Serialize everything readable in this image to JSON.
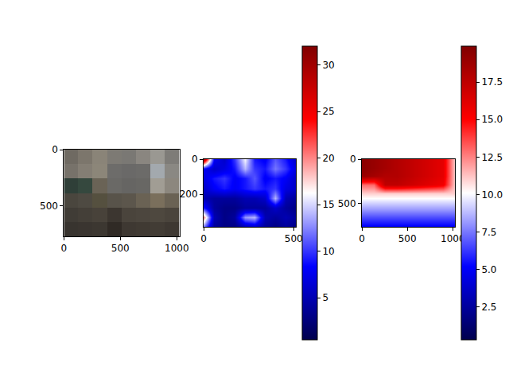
{
  "chart_data": [
    {
      "type": "image",
      "xlim": [
        0,
        1024
      ],
      "ylim": [
        768,
        0
      ],
      "xticks": [
        0,
        500,
        1000
      ],
      "yticks": [
        0,
        500
      ],
      "pixels": [
        [
          "#6f6a62",
          "#7c766c",
          "#8a8478",
          "#7d7a74",
          "#7a7874",
          "#8a8680",
          "#9a9892",
          "#7e7c78"
        ],
        [
          "#77726a",
          "#847e74",
          "#8c8679",
          "#6d6c6a",
          "#6a6968",
          "#6c6b69",
          "#a3a9ae",
          "#8a8883"
        ],
        [
          "#2f3f38",
          "#35483e",
          "#6a6356",
          "#6a6966",
          "#666563",
          "#686764",
          "#a19d94",
          "#8c877e"
        ],
        [
          "#4a463e",
          "#4e4a42",
          "#55503f",
          "#58534a",
          "#5c564c",
          "#6a6254",
          "#7a6f5c",
          "#6a6254"
        ],
        [
          "#403c36",
          "#443f38",
          "#48423a",
          "#3c3630",
          "#4a443c",
          "#4c463e",
          "#4e483f",
          "#4a443c"
        ],
        [
          "#38342f",
          "#3a3530",
          "#3c3731",
          "#302a25",
          "#3e3832",
          "#403a33",
          "#423c35",
          "#3e3832"
        ]
      ]
    },
    {
      "type": "heatmap",
      "xlim": [
        0,
        512
      ],
      "ylim": [
        384,
        0
      ],
      "xticks": [
        0,
        500
      ],
      "yticks": [
        0,
        200
      ],
      "x": [
        0,
        57,
        114,
        171,
        228,
        284,
        341,
        398,
        455,
        512
      ],
      "y": [
        0,
        55,
        110,
        165,
        220,
        275,
        330,
        384
      ],
      "cells": [
        [
          30,
          8,
          6,
          10,
          16,
          9,
          8,
          11,
          9,
          6
        ],
        [
          8,
          6,
          7,
          9,
          14,
          10,
          9,
          12,
          10,
          7
        ],
        [
          7,
          9,
          10,
          8,
          9,
          11,
          8,
          9,
          8,
          6
        ],
        [
          6,
          8,
          9,
          8,
          9,
          10,
          9,
          10,
          7,
          6
        ],
        [
          5,
          4,
          4,
          4,
          5,
          5,
          6,
          14,
          5,
          4
        ],
        [
          9,
          4,
          3,
          3,
          4,
          4,
          4,
          6,
          4,
          3
        ],
        [
          20,
          5,
          3,
          4,
          13,
          14,
          5,
          4,
          5,
          4
        ],
        [
          12,
          4,
          3,
          3,
          5,
          6,
          4,
          3,
          4,
          3
        ]
      ],
      "colorbar_range": [
        0.5,
        32
      ],
      "colorbar_ticks": [
        5,
        10,
        15,
        20,
        25,
        30
      ]
    },
    {
      "type": "heatmap",
      "xlim": [
        0,
        1024
      ],
      "ylim": [
        768,
        0
      ],
      "xticks": [
        0,
        500,
        1000
      ],
      "yticks": [
        0,
        500
      ],
      "x": [
        0,
        128,
        256,
        384,
        512,
        640,
        768,
        896,
        1024
      ],
      "y": [
        0,
        96,
        192,
        288,
        384,
        480,
        576,
        672,
        768
      ],
      "cells": [
        [
          19.5,
          19,
          18.5,
          18,
          17.5,
          17,
          16.5,
          16,
          11
        ],
        [
          19.5,
          19,
          18.5,
          18,
          17.5,
          17,
          16.5,
          16,
          11
        ],
        [
          19,
          18.5,
          18,
          18,
          17.5,
          17,
          16.5,
          16,
          11
        ],
        [
          13,
          13,
          17.5,
          17.5,
          17,
          16.5,
          16,
          15.5,
          11
        ],
        [
          11,
          11,
          11,
          11,
          11,
          11,
          11,
          11,
          11
        ],
        [
          9.5,
          9.5,
          9.5,
          9.5,
          9.5,
          9.5,
          9.5,
          9.5,
          9.5
        ],
        [
          8,
          8,
          8,
          8,
          8,
          8,
          8,
          8,
          8
        ],
        [
          6.5,
          6.5,
          6.5,
          6.5,
          6.5,
          6.5,
          6.5,
          6.5,
          6.5
        ],
        [
          5,
          5,
          5,
          5,
          5,
          5,
          5,
          5,
          5
        ]
      ],
      "colorbar_range": [
        0.3,
        19.9
      ],
      "colorbar_ticks": [
        2.5,
        {
          "value": 5,
          "label": "5.0"
        },
        7.5,
        {
          "value": 10,
          "label": "10.0"
        },
        12.5,
        {
          "value": 15,
          "label": "15.0"
        },
        17.5
      ]
    }
  ]
}
